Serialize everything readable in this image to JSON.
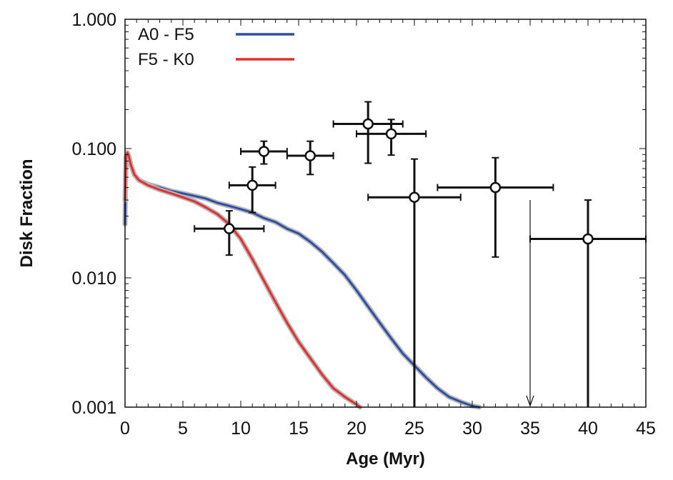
{
  "chart_data": {
    "type": "line",
    "title": "",
    "xlabel": "Age (Myr)",
    "ylabel": "Disk Fraction",
    "xlim": [
      0,
      45
    ],
    "ylim": [
      0.001,
      1.0
    ],
    "yscale": "log",
    "xticks": [
      0,
      5,
      10,
      15,
      20,
      25,
      30,
      35,
      40,
      45
    ],
    "xtick_labels": [
      "0",
      "5",
      "10",
      "15",
      "20",
      "25",
      "30",
      "35",
      "40",
      "45"
    ],
    "yticks": [
      0.001,
      0.01,
      0.1,
      1.0
    ],
    "ytick_labels": [
      "0.001",
      "0.010",
      "0.100",
      "1.000"
    ],
    "legend_position": "top-left",
    "series": [
      {
        "name": "A0 - F5",
        "color": "#2e4fa3",
        "x": [
          0.0,
          0.05,
          0.1,
          0.2,
          0.3,
          0.5,
          0.8,
          1.2,
          2,
          3,
          4,
          5,
          6,
          7,
          8,
          9,
          10,
          11,
          12,
          13,
          14,
          15,
          16,
          17,
          18,
          19,
          20,
          21,
          22,
          23,
          24,
          25,
          26,
          27,
          28,
          29,
          30,
          30.6
        ],
        "values": [
          0.026,
          0.06,
          0.085,
          0.092,
          0.088,
          0.075,
          0.063,
          0.057,
          0.053,
          0.05,
          0.047,
          0.045,
          0.043,
          0.041,
          0.038,
          0.036,
          0.034,
          0.032,
          0.029,
          0.027,
          0.024,
          0.022,
          0.019,
          0.016,
          0.013,
          0.0105,
          0.008,
          0.006,
          0.0045,
          0.0034,
          0.0026,
          0.0021,
          0.0017,
          0.0014,
          0.0012,
          0.0011,
          0.00102,
          0.001
        ]
      },
      {
        "name": "F5 - K0",
        "color": "#e03030",
        "x": [
          0.0,
          0.05,
          0.1,
          0.2,
          0.3,
          0.5,
          0.8,
          1.2,
          2,
          3,
          4,
          5,
          6,
          7,
          8,
          9,
          10,
          11,
          12,
          13,
          14,
          15,
          16,
          17,
          18,
          19,
          20,
          20.3
        ],
        "values": [
          0.04,
          0.065,
          0.087,
          0.093,
          0.089,
          0.075,
          0.063,
          0.057,
          0.052,
          0.048,
          0.045,
          0.042,
          0.039,
          0.035,
          0.031,
          0.026,
          0.02,
          0.014,
          0.0095,
          0.0065,
          0.0045,
          0.0032,
          0.0024,
          0.0018,
          0.0014,
          0.0012,
          0.00105,
          0.001
        ]
      }
    ],
    "points": [
      {
        "x": 9,
        "y": 0.024,
        "xerr": 3,
        "ylo": 0.015,
        "yhi": 0.033
      },
      {
        "x": 11,
        "y": 0.052,
        "xerr": 2,
        "ylo": 0.032,
        "yhi": 0.072
      },
      {
        "x": 12,
        "y": 0.095,
        "xerr": 2,
        "ylo": 0.076,
        "yhi": 0.114
      },
      {
        "x": 16,
        "y": 0.088,
        "xerr": 2,
        "ylo": 0.063,
        "yhi": 0.114
      },
      {
        "x": 21,
        "y": 0.155,
        "xerr": 3,
        "ylo": 0.077,
        "yhi": 0.23
      },
      {
        "x": 23,
        "y": 0.13,
        "xerr": 3,
        "ylo": 0.089,
        "yhi": 0.168
      },
      {
        "x": 25,
        "y": 0.042,
        "xerr": 4,
        "ylo": 0.001,
        "yhi": 0.083
      },
      {
        "x": 32,
        "y": 0.05,
        "xerr": 5,
        "ylo": 0.0145,
        "yhi": 0.085
      },
      {
        "x": 40,
        "y": 0.02,
        "xerr": 5,
        "ylo": 0.001,
        "yhi": 0.04
      }
    ],
    "upper_limit": {
      "x": 35,
      "y": 0.04
    }
  }
}
